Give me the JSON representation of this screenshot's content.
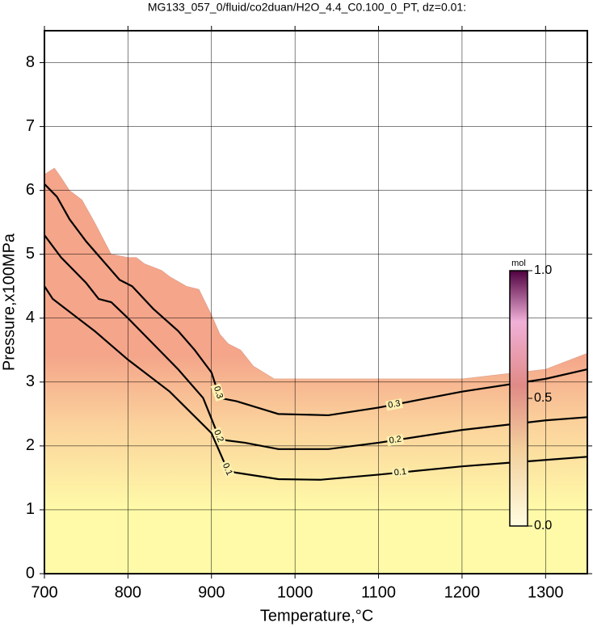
{
  "chart_data": {
    "type": "contour",
    "title": "MG133_057_0/fluid/co2duan/H2O_4.4_C0.100_0_PT, dz=0.01:",
    "x_label": "Temperature,°C",
    "y_label": "Pressure,x100MPa",
    "xlim": [
      700,
      1350
    ],
    "xticks": [
      700,
      800,
      900,
      1000,
      1100,
      1200,
      1300
    ],
    "ylim": [
      0,
      8.5
    ],
    "yticks": [
      0,
      1,
      2,
      3,
      4,
      5,
      6,
      7,
      8
    ],
    "grid": true,
    "region": {
      "x": [
        700,
        712,
        720,
        730,
        745,
        760,
        780,
        800,
        810,
        820,
        840,
        850,
        870,
        885,
        900,
        910,
        920,
        935,
        950,
        975,
        1100,
        1200,
        1300,
        1350,
        1350,
        700
      ],
      "y": [
        6.25,
        6.35,
        6.2,
        6.0,
        5.85,
        5.5,
        5.0,
        4.95,
        4.95,
        4.85,
        4.75,
        4.65,
        4.5,
        4.45,
        4.05,
        3.75,
        3.6,
        3.5,
        3.25,
        3.05,
        3.05,
        3.05,
        3.2,
        3.45,
        0,
        0
      ]
    },
    "series": [
      {
        "name": "0.3",
        "color": "#000000",
        "x": [
          700,
          715,
          730,
          750,
          770,
          790,
          805,
          830,
          860,
          880,
          900,
          910,
          930,
          980,
          1040,
          1100,
          1200,
          1300,
          1350
        ],
        "y": [
          6.1,
          5.9,
          5.55,
          5.2,
          4.9,
          4.6,
          4.5,
          4.15,
          3.8,
          3.5,
          3.15,
          2.75,
          2.7,
          2.5,
          2.48,
          2.6,
          2.85,
          3.05,
          3.2
        ]
      },
      {
        "name": "0.2",
        "color": "#000000",
        "x": [
          700,
          720,
          750,
          765,
          780,
          800,
          830,
          860,
          890,
          910,
          940,
          980,
          1040,
          1100,
          1200,
          1300,
          1350
        ],
        "y": [
          5.3,
          4.95,
          4.55,
          4.3,
          4.25,
          4.0,
          3.6,
          3.2,
          2.75,
          2.1,
          2.05,
          1.95,
          1.95,
          2.05,
          2.25,
          2.4,
          2.45
        ]
      },
      {
        "name": "0.1",
        "color": "#000000",
        "x": [
          700,
          710,
          735,
          760,
          800,
          850,
          900,
          920,
          980,
          1030,
          1100,
          1200,
          1300,
          1350
        ],
        "y": [
          4.5,
          4.3,
          4.05,
          3.8,
          3.35,
          2.85,
          2.2,
          1.6,
          1.48,
          1.47,
          1.55,
          1.68,
          1.78,
          1.83
        ]
      }
    ],
    "colorbar": {
      "label": "mol",
      "lim": [
        0,
        1
      ],
      "ticks": [
        {
          "value": 0,
          "label": "0.0"
        },
        {
          "value": 0.5,
          "label": "0.5"
        },
        {
          "value": 1,
          "label": "1.0"
        }
      ]
    }
  }
}
